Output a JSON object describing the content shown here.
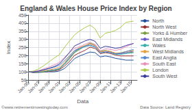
{
  "chart_data": {
    "type": "line",
    "title": "England & Wales House Price Index by Region",
    "xlabel": "Data",
    "ylabel": "Index",
    "xlim": [
      1995.0,
      2016.2
    ],
    "xticks": [
      {
        "value": 1995,
        "label": "Jan-95"
      },
      {
        "value": 1997,
        "label": "Jan-97"
      },
      {
        "value": 1999,
        "label": "Jan-99"
      },
      {
        "value": 2001,
        "label": "Jan-01"
      },
      {
        "value": 2003,
        "label": "Jan-03"
      },
      {
        "value": 2005,
        "label": "Jan-05"
      },
      {
        "value": 2007,
        "label": "Jan-07"
      },
      {
        "value": 2009,
        "label": "Jan-09"
      },
      {
        "value": 2011,
        "label": "Jan-11"
      },
      {
        "value": 2013,
        "label": "Jan-13"
      },
      {
        "value": 2015,
        "label": "Jan-15"
      }
    ],
    "ylim": [
      50,
      450
    ],
    "yticks": [
      50,
      100,
      150,
      200,
      250,
      300,
      350,
      400,
      450
    ],
    "grid": true,
    "legend": "right",
    "annotations": [
      "©www.retirementinvestingtoday.com",
      "Data Source: Land Registry"
    ],
    "x": [
      1995,
      1996,
      1997,
      1998,
      1999,
      2000,
      2001,
      2002,
      2003,
      2004,
      2005,
      2006,
      2007,
      2008,
      2009,
      2010,
      2011,
      2012,
      2013,
      2014,
      2015.5
    ],
    "series": [
      {
        "name": "North",
        "color": "#1F4E9F",
        "values": [
          100,
          95,
          96,
          98,
          100,
          100,
          105,
          120,
          150,
          182,
          198,
          210,
          222,
          218,
          192,
          198,
          192,
          183,
          178,
          172,
          172
        ]
      },
      {
        "name": "North West",
        "color": "#9B2F2F",
        "values": [
          100,
          97,
          98,
          100,
          103,
          105,
          112,
          135,
          165,
          202,
          218,
          232,
          252,
          244,
          212,
          218,
          213,
          203,
          198,
          198,
          198
        ]
      },
      {
        "name": "Yorks & Humber",
        "color": "#7B9E3F",
        "values": [
          100,
          97,
          98,
          100,
          105,
          108,
          115,
          145,
          180,
          218,
          238,
          258,
          278,
          268,
          228,
          232,
          225,
          215,
          212,
          218,
          222
        ]
      },
      {
        "name": "East Midlands",
        "color": "#6A5ACD",
        "values": [
          100,
          98,
          100,
          103,
          108,
          112,
          120,
          150,
          188,
          225,
          245,
          260,
          272,
          262,
          222,
          228,
          222,
          212,
          212,
          218,
          228
        ]
      },
      {
        "name": "Wales",
        "color": "#3AAEAE",
        "values": [
          100,
          98,
          100,
          103,
          107,
          110,
          118,
          148,
          185,
          222,
          242,
          255,
          262,
          252,
          218,
          222,
          218,
          208,
          208,
          212,
          218
        ]
      },
      {
        "name": "West Midlands",
        "color": "#E8A040",
        "values": [
          100,
          99,
          102,
          106,
          112,
          118,
          128,
          158,
          195,
          232,
          250,
          262,
          272,
          262,
          222,
          230,
          225,
          215,
          218,
          225,
          232
        ]
      },
      {
        "name": "East Anglia",
        "color": "#5588D0",
        "values": [
          100,
          100,
          105,
          112,
          120,
          128,
          140,
          168,
          200,
          232,
          245,
          258,
          265,
          255,
          215,
          222,
          218,
          212,
          215,
          225,
          238
        ]
      },
      {
        "name": "South East",
        "color": "#E890B8",
        "values": [
          100,
          102,
          108,
          118,
          130,
          142,
          158,
          188,
          218,
          245,
          255,
          270,
          282,
          268,
          228,
          242,
          238,
          232,
          240,
          255,
          275
        ]
      },
      {
        "name": "London",
        "color": "#AACC44",
        "values": [
          100,
          105,
          118,
          138,
          162,
          185,
          205,
          250,
          290,
          328,
          352,
          372,
          388,
          365,
          308,
          338,
          345,
          355,
          375,
          405,
          412
        ]
      },
      {
        "name": "South West",
        "color": "#3B3BA0",
        "values": [
          100,
          100,
          105,
          113,
          122,
          132,
          148,
          182,
          220,
          260,
          275,
          290,
          300,
          288,
          245,
          258,
          252,
          245,
          250,
          262,
          275
        ]
      }
    ]
  }
}
